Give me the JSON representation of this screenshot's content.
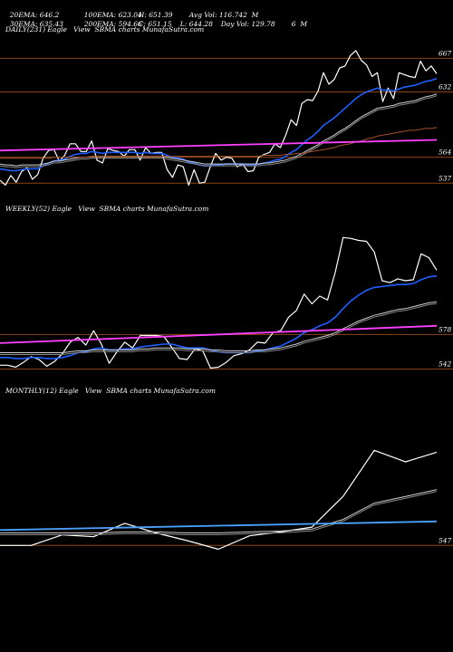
{
  "header": {
    "row1": [
      "20EMA: 646.2",
      "100EMA: 623.04",
      "H: 651.39",
      "Avg Vol: 116.742  M"
    ],
    "row2": [
      "30EMA: 635.43",
      "200EMA: 594.66",
      "C: 651.15",
      "L: 644.28",
      "Day Vol: 129.78",
      "6  M"
    ]
  },
  "colors": {
    "background": "#000000",
    "price": "#ffffff",
    "ema_short": "#1f5fff",
    "ema_long": "#cfcfcf",
    "ema_200": "#a0522d",
    "support": "#ff40ff",
    "monthly_ema": "#4aa3ff",
    "level_line": "#8b4513"
  },
  "chart_data": [
    {
      "type": "line",
      "title": "DAILY(231) Eagle   View  SBMA charts MunafaSutra.com",
      "tick_labels": [
        "667",
        "632",
        "564",
        "537"
      ],
      "levels": [
        667,
        632,
        564,
        537
      ],
      "ylim": [
        525,
        690
      ],
      "series": [
        {
          "key": "price",
          "values": [
            540,
            535,
            545,
            538,
            549,
            553,
            541,
            546,
            563,
            571,
            572,
            560,
            566,
            578,
            578,
            570,
            570,
            581,
            561,
            558,
            573,
            571,
            570,
            565,
            572,
            572,
            561,
            574,
            568,
            569,
            569,
            551,
            543,
            556,
            554,
            535,
            551,
            537,
            538,
            554,
            568,
            561,
            564,
            563,
            554,
            557,
            549,
            550,
            564,
            567,
            569,
            578,
            574,
            587,
            603,
            597,
            620,
            624,
            623,
            633,
            652,
            640,
            645,
            657,
            659,
            670,
            675,
            665,
            660,
            648,
            652,
            622,
            636,
            625,
            652,
            650,
            648,
            647,
            664,
            654,
            659,
            651
          ]
        },
        {
          "key": "ema_short",
          "values": [
            552,
            551,
            550,
            550,
            551,
            552,
            552,
            552,
            555,
            558,
            560,
            561,
            562,
            565,
            567,
            568,
            568,
            570,
            569,
            568,
            569,
            569,
            569,
            569,
            569,
            569,
            568,
            569,
            568,
            568,
            568,
            566,
            564,
            563,
            562,
            559,
            558,
            556,
            555,
            555,
            556,
            556,
            557,
            557,
            557,
            557,
            556,
            556,
            557,
            558,
            559,
            561,
            562,
            565,
            569,
            572,
            577,
            582,
            586,
            591,
            597,
            601,
            605,
            610,
            615,
            620,
            625,
            629,
            632,
            634,
            636,
            634,
            634,
            633,
            635,
            637,
            638,
            639,
            641,
            643,
            644,
            646
          ]
        },
        {
          "key": "ema_long",
          "values": [
            557,
            556,
            556,
            555,
            556,
            556,
            556,
            556,
            557,
            558,
            560,
            560,
            561,
            562,
            563,
            564,
            564,
            565,
            565,
            565,
            565,
            565,
            565,
            565,
            565,
            565,
            565,
            565,
            565,
            565,
            565,
            564,
            563,
            562,
            561,
            560,
            559,
            558,
            557,
            557,
            557,
            557,
            557,
            557,
            557,
            557,
            557,
            557,
            557,
            558,
            558,
            559,
            560,
            561,
            563,
            565,
            568,
            571,
            574,
            577,
            581,
            584,
            587,
            591,
            594,
            598,
            602,
            606,
            609,
            612,
            615,
            616,
            617,
            618,
            620,
            621,
            622,
            623,
            625,
            627,
            628,
            630
          ]
        },
        {
          "key": "ema_200",
          "values": [
            563,
            563,
            563,
            563,
            563,
            563,
            563,
            563,
            563,
            563,
            564,
            564,
            564,
            564,
            564,
            564,
            564,
            565,
            565,
            565,
            565,
            565,
            565,
            565,
            565,
            565,
            565,
            565,
            565,
            565,
            565,
            565,
            565,
            565,
            565,
            565,
            565,
            565,
            565,
            565,
            565,
            565,
            565,
            565,
            565,
            565,
            565,
            565,
            565,
            566,
            566,
            566,
            566,
            567,
            567,
            568,
            568,
            569,
            570,
            571,
            572,
            573,
            574,
            576,
            577,
            578,
            580,
            581,
            583,
            584,
            586,
            587,
            588,
            589,
            590,
            591,
            592,
            592,
            593,
            594,
            594,
            595
          ]
        },
        {
          "key": "support",
          "values": [
            571,
            582
          ]
        }
      ]
    },
    {
      "type": "line",
      "title": "WEEKLY(52) Eagle   View  SBMA charts MunafaSutra.com",
      "tick_labels": [
        "578",
        "542"
      ],
      "levels": [
        578,
        542
      ],
      "ylim": [
        535,
        700
      ],
      "series": [
        {
          "key": "price",
          "values": [
            546,
            546,
            544,
            549,
            555,
            552,
            545,
            550,
            558,
            570,
            575,
            567,
            582,
            568,
            548,
            560,
            570,
            564,
            577,
            577,
            577,
            576,
            565,
            553,
            552,
            563,
            561,
            543,
            544,
            549,
            556,
            558,
            562,
            570,
            569,
            580,
            582,
            596,
            603,
            620,
            610,
            618,
            614,
            643,
            679,
            678,
            676,
            675,
            664,
            634,
            632,
            636,
            634,
            635,
            662,
            658,
            645
          ]
        },
        {
          "key": "ema_short",
          "values": [
            554,
            554,
            553,
            553,
            554,
            554,
            553,
            553,
            554,
            556,
            559,
            560,
            563,
            564,
            562,
            562,
            563,
            563,
            565,
            566,
            567,
            568,
            568,
            566,
            564,
            564,
            564,
            562,
            560,
            559,
            559,
            559,
            559,
            561,
            562,
            564,
            566,
            570,
            574,
            580,
            583,
            587,
            590,
            596,
            605,
            613,
            619,
            624,
            627,
            628,
            629,
            630,
            630,
            631,
            635,
            638,
            639
          ]
        },
        {
          "key": "ema_long",
          "values": [
            559,
            559,
            559,
            559,
            559,
            559,
            559,
            559,
            559,
            560,
            561,
            561,
            562,
            562,
            562,
            562,
            562,
            562,
            563,
            563,
            564,
            564,
            564,
            564,
            563,
            563,
            563,
            562,
            562,
            561,
            561,
            561,
            561,
            562,
            562,
            563,
            564,
            566,
            568,
            571,
            573,
            575,
            577,
            580,
            584,
            588,
            592,
            595,
            598,
            600,
            602,
            604,
            605,
            607,
            609,
            611,
            612
          ]
        },
        {
          "key": "support",
          "values": [
            569,
            587
          ]
        }
      ]
    },
    {
      "type": "line",
      "title": "MONTHLY(12) Eagle   View  SBMA charts MunafaSutra.com",
      "tick_labels": [
        "547"
      ],
      "levels": [
        547
      ],
      "ylim": [
        535,
        700
      ],
      "series": [
        {
          "key": "price",
          "values": [
            547,
            547,
            558,
            556,
            570,
            560,
            552,
            543,
            557,
            561,
            566,
            598,
            646,
            634,
            644
          ]
        },
        {
          "key": "ema_long",
          "values": [
            560,
            560,
            560,
            560,
            561,
            561,
            560,
            560,
            561,
            562,
            564,
            574,
            591,
            598,
            605
          ]
        },
        {
          "key": "monthly_ema",
          "values": [
            563,
            572
          ]
        }
      ]
    }
  ]
}
